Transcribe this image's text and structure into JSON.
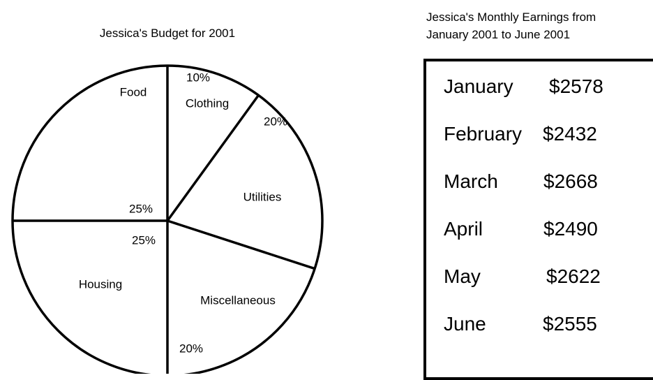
{
  "chart_data": [
    {
      "type": "pie",
      "title": "Jessica's Budget for 2001",
      "slices": [
        {
          "label": "Clothing",
          "value": 10,
          "value_label": "10%"
        },
        {
          "label": "Utilities",
          "value": 20,
          "value_label": "20%"
        },
        {
          "label": "Miscellaneous",
          "value": 20,
          "value_label": "20%"
        },
        {
          "label": "Housing",
          "value": 25,
          "value_label": "25%"
        },
        {
          "label": "Food",
          "value": 25,
          "value_label": "25%"
        }
      ],
      "fill_color": "#ffffff",
      "line_color": "#000000",
      "legend": "none"
    },
    {
      "type": "table",
      "title_lines": [
        "Jessica's Monthly Earnings from",
        "January 2001 to June 2001"
      ],
      "rows": [
        {
          "month": "January",
          "amount": "$2578"
        },
        {
          "month": "February",
          "amount": "$2432"
        },
        {
          "month": "March",
          "amount": "$2668"
        },
        {
          "month": "April",
          "amount": "$2490"
        },
        {
          "month": "May",
          "amount": "$2622"
        },
        {
          "month": "June",
          "amount": "$2555"
        }
      ]
    }
  ]
}
